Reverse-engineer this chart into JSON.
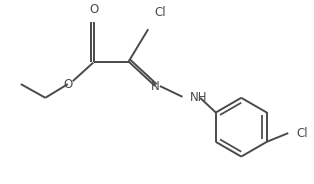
{
  "bg_color": "#ffffff",
  "bond_color": "#4a4a4a",
  "text_color": "#4a4a4a",
  "line_width": 1.4,
  "font_size": 8.5,
  "figsize": [
    3.14,
    1.84
  ],
  "dpi": 100,
  "xlim": [
    0,
    314
  ],
  "ylim": [
    0,
    184
  ]
}
